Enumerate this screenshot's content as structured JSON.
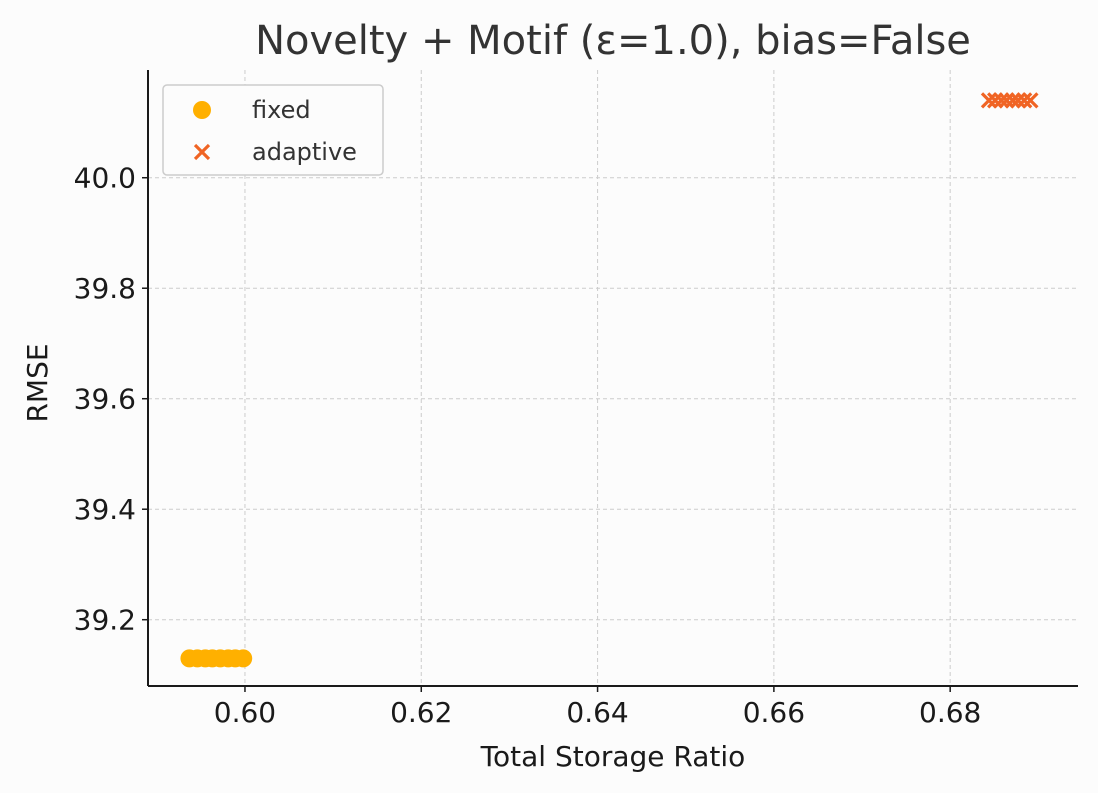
{
  "chart_data": {
    "type": "scatter",
    "title": "Novelty + Motif (ε=1.0), bias=False",
    "xlabel": "Total Storage Ratio",
    "ylabel": "RMSE",
    "xlim": [
      0.589,
      0.6945
    ],
    "ylim": [
      39.08,
      40.195
    ],
    "xticks": [
      0.6,
      0.62,
      0.64,
      0.66,
      0.68
    ],
    "xtick_labels": [
      "0.60",
      "0.62",
      "0.64",
      "0.66",
      "0.68"
    ],
    "yticks": [
      39.2,
      39.4,
      39.6,
      39.8,
      40.0
    ],
    "ytick_labels": [
      "39.2",
      "39.4",
      "39.6",
      "39.8",
      "40.0"
    ],
    "grid": true,
    "legend_position": "top-left",
    "series": [
      {
        "name": "fixed",
        "marker": "circle",
        "color": "#FFB000",
        "x": [
          0.5937,
          0.5946,
          0.5955,
          0.5963,
          0.5972,
          0.5981,
          0.5989,
          0.5998
        ],
        "y": [
          39.13,
          39.13,
          39.13,
          39.13,
          39.13,
          39.13,
          39.13,
          39.13
        ]
      },
      {
        "name": "adaptive",
        "marker": "x",
        "color": "#F06424",
        "x": [
          0.6844,
          0.6851,
          0.6858,
          0.6864,
          0.6871,
          0.6877,
          0.6884,
          0.6891
        ],
        "y": [
          40.14,
          40.14,
          40.14,
          40.14,
          40.14,
          40.14,
          40.14,
          40.14
        ]
      }
    ]
  }
}
